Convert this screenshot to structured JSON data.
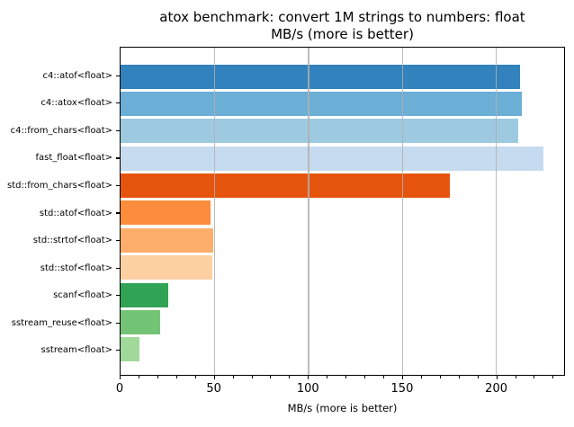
{
  "title": {
    "line1": "atox benchmark: convert 1M strings to numbers: float",
    "line2": "MB/s (more is better)"
  },
  "axes": {
    "xlabel": "MB/s (more is better)"
  },
  "chart_data": {
    "type": "bar",
    "orientation": "horizontal",
    "title": "atox benchmark: convert 1M strings to numbers: float",
    "subtitle": "MB/s (more is better)",
    "xlabel": "MB/s (more is better)",
    "ylabel": "",
    "categories": [
      "c4::atof<float>",
      "c4::atox<float>",
      "c4::from_chars<float>",
      "fast_float<float>",
      "std::from_chars<float>",
      "std::atof<float>",
      "std::strtof<float>",
      "std::stof<float>",
      "scanf<float>",
      "sstream_reuse<float>",
      "sstream<float>"
    ],
    "values": [
      213.1,
      214.1,
      211.9,
      225.5,
      175.5,
      47.9,
      49.3,
      48.9,
      25.3,
      21.2,
      10.0
    ],
    "bar_colors": [
      "#3182bd",
      "#6baed6",
      "#9ecae1",
      "#c6dbef",
      "#e6550d",
      "#fd8d3c",
      "#fdae6b",
      "#fdd0a2",
      "#31a354",
      "#74c476",
      "#a1d99b"
    ],
    "xlim": [
      0,
      236.5
    ],
    "x_major_ticks": [
      0,
      50,
      100,
      150,
      200
    ],
    "x_minor_step": 10,
    "grid": {
      "axis": "x",
      "which": "major",
      "color": "#b0b0b0",
      "drawn_over_bars": true
    },
    "legend": null,
    "spine_color": "#000000",
    "background": "#ffffff"
  }
}
